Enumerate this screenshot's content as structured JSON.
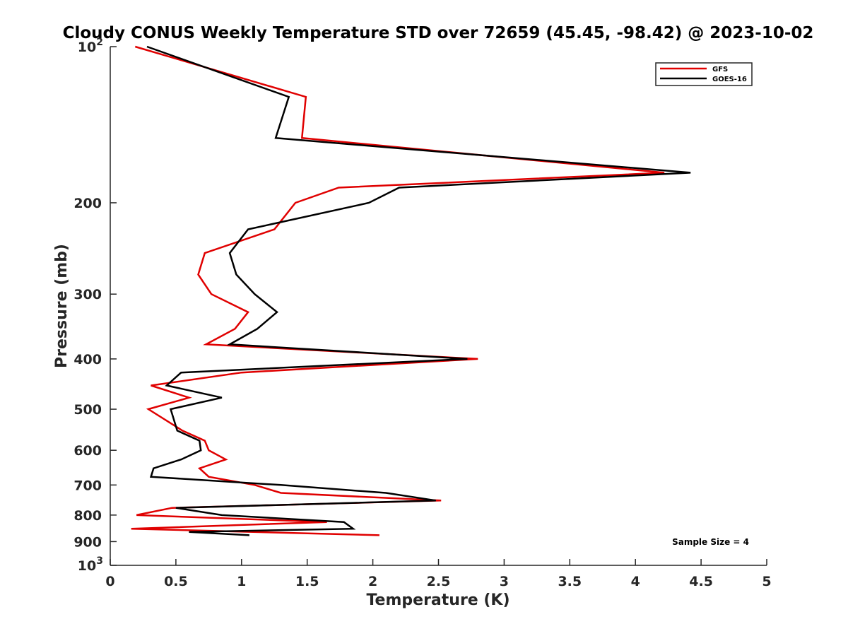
{
  "chart_data": {
    "type": "line",
    "title": "Cloudy CONUS Weekly Temperature STD over 72659 (45.45, -98.42) @ 2023-10-02",
    "xlabel": "Temperature (K)",
    "ylabel": "Pressure (mb)",
    "xlim": [
      0,
      5
    ],
    "ylim": [
      1000,
      100
    ],
    "yscale": "log",
    "y_reversed": true,
    "x_ticks": [
      "0",
      "0.5",
      "1",
      "1.5",
      "2",
      "2.5",
      "3",
      "3.5",
      "4",
      "4.5",
      "5"
    ],
    "y_ticks": [
      {
        "value": 100,
        "base": "10",
        "exp": "2"
      },
      {
        "value": 200,
        "label": "200"
      },
      {
        "value": 300,
        "label": "300"
      },
      {
        "value": 400,
        "label": "400"
      },
      {
        "value": 500,
        "label": "500"
      },
      {
        "value": 600,
        "label": "600"
      },
      {
        "value": 700,
        "label": "700"
      },
      {
        "value": 800,
        "label": "800"
      },
      {
        "value": 900,
        "label": "900"
      },
      {
        "value": 1000,
        "base": "10",
        "exp": "3"
      }
    ],
    "grid": false,
    "legend_position": "top-right",
    "annotation": "Sample Size = 4",
    "series": [
      {
        "name": "GFS",
        "color": "#e00000",
        "points": [
          [
            0.19,
            100
          ],
          [
            1.49,
            125
          ],
          [
            1.46,
            150
          ],
          [
            4.22,
            175
          ],
          [
            1.74,
            187
          ],
          [
            1.41,
            200
          ],
          [
            1.25,
            225
          ],
          [
            0.72,
            250
          ],
          [
            0.67,
            275
          ],
          [
            0.77,
            300
          ],
          [
            1.05,
            325
          ],
          [
            0.95,
            350
          ],
          [
            0.73,
            375
          ],
          [
            2.8,
            400
          ],
          [
            1.0,
            425
          ],
          [
            0.31,
            450
          ],
          [
            0.6,
            475
          ],
          [
            0.29,
            500
          ],
          [
            0.55,
            550
          ],
          [
            0.72,
            575
          ],
          [
            0.75,
            600
          ],
          [
            0.88,
            625
          ],
          [
            0.68,
            650
          ],
          [
            0.75,
            675
          ],
          [
            1.1,
            700
          ],
          [
            1.3,
            725
          ],
          [
            2.52,
            750
          ],
          [
            0.47,
            775
          ],
          [
            0.2,
            800
          ],
          [
            1.65,
            825
          ],
          [
            0.16,
            850
          ],
          [
            2.05,
            875
          ]
        ]
      },
      {
        "name": "GOES-16",
        "color": "#000000",
        "points": [
          [
            0.28,
            100
          ],
          [
            1.36,
            125
          ],
          [
            1.26,
            150
          ],
          [
            4.42,
            175
          ],
          [
            2.2,
            187
          ],
          [
            1.97,
            200
          ],
          [
            1.05,
            225
          ],
          [
            0.91,
            250
          ],
          [
            0.96,
            275
          ],
          [
            1.1,
            300
          ],
          [
            1.27,
            325
          ],
          [
            1.12,
            350
          ],
          [
            0.91,
            375
          ],
          [
            2.72,
            400
          ],
          [
            0.54,
            425
          ],
          [
            0.43,
            450
          ],
          [
            0.85,
            475
          ],
          [
            0.46,
            500
          ],
          [
            0.51,
            550
          ],
          [
            0.68,
            575
          ],
          [
            0.69,
            600
          ],
          [
            0.54,
            625
          ],
          [
            0.33,
            650
          ],
          [
            0.31,
            675
          ],
          [
            1.3,
            700
          ],
          [
            2.1,
            725
          ],
          [
            2.48,
            750
          ],
          [
            0.5,
            775
          ],
          [
            0.85,
            800
          ],
          [
            1.78,
            825
          ],
          [
            1.85,
            850
          ],
          [
            0.6,
            862
          ],
          [
            1.06,
            875
          ]
        ]
      }
    ]
  }
}
